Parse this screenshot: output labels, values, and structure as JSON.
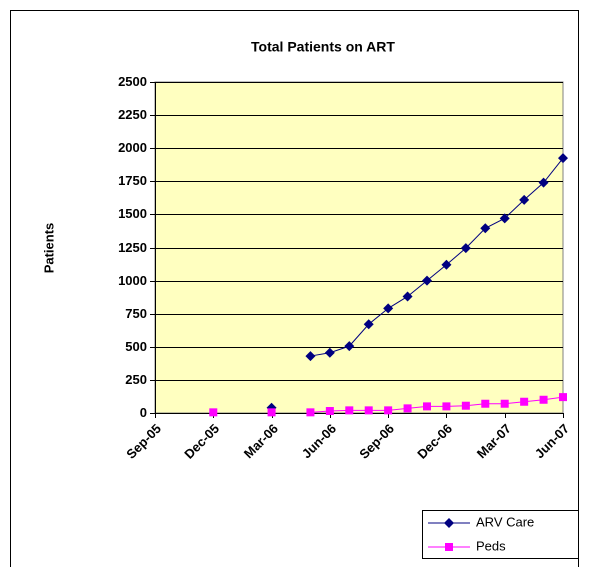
{
  "chart_data": {
    "type": "line",
    "title": "Total Patients on ART",
    "y_label": "Patients",
    "x": [
      "2005-12",
      "2006-01",
      "2006-02",
      "2006-03",
      "2006-04",
      "2006-05",
      "2006-06",
      "2006-07",
      "2006-08",
      "2006-09",
      "2006-10",
      "2006-11",
      "2006-12",
      "2007-01",
      "2007-02",
      "2007-03",
      "2007-04",
      "2007-05",
      "2007-06"
    ],
    "series": [
      {
        "name": "ARV Care",
        "color": "#000080",
        "marker": "diamond",
        "values": [
          null,
          null,
          null,
          40,
          null,
          430,
          455,
          505,
          670,
          790,
          880,
          1000,
          1120,
          1245,
          1395,
          1470,
          1610,
          1740,
          1925
        ]
      },
      {
        "name": "Peds",
        "color": "#ff00ff",
        "marker": "square",
        "values": [
          5,
          null,
          null,
          5,
          null,
          5,
          15,
          20,
          20,
          20,
          35,
          50,
          50,
          55,
          70,
          70,
          85,
          100,
          120
        ]
      }
    ],
    "xlim": [
      "2005-09",
      "2007-06"
    ],
    "xticks": [
      {
        "value": "2005-09",
        "label": "Sep-05"
      },
      {
        "value": "2005-12",
        "label": "Dec-05"
      },
      {
        "value": "2006-03",
        "label": "Mar-06"
      },
      {
        "value": "2006-06",
        "label": "Jun-06"
      },
      {
        "value": "2006-09",
        "label": "Sep-06"
      },
      {
        "value": "2006-12",
        "label": "Dec-06"
      },
      {
        "value": "2007-03",
        "label": "Mar-07"
      },
      {
        "value": "2007-06",
        "label": "Jun-07"
      }
    ],
    "ylim": [
      0,
      2500
    ],
    "yticks": [
      0,
      250,
      500,
      750,
      1000,
      1250,
      1500,
      1750,
      2000,
      2250,
      2500
    ],
    "grid": true,
    "plot_background": "#ffffc0",
    "legend": "bottom-right"
  }
}
